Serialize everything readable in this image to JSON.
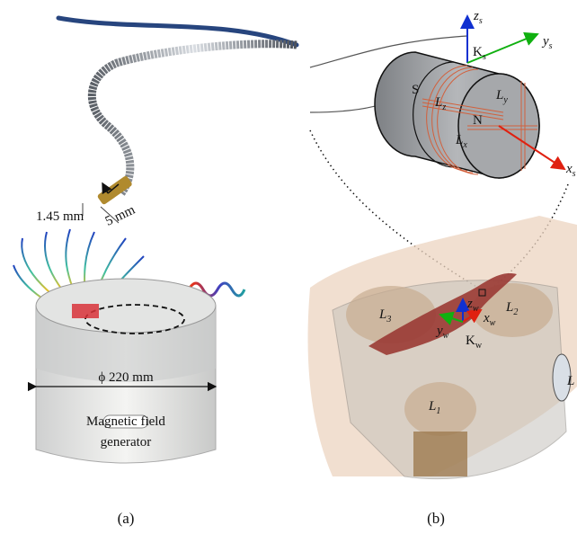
{
  "panel_a": {
    "catheter_diameter": "1.45 mm",
    "tip_length": "5 mm",
    "generator_diameter": "ϕ 220 mm",
    "generator_label": [
      "Magnetic field",
      "generator"
    ],
    "caption": "(a)"
  },
  "panel_b": {
    "magnet_poles": [
      "S",
      "N"
    ],
    "coils": [
      {
        "base": "L",
        "sub": "z"
      },
      {
        "base": "L",
        "sub": "y"
      },
      {
        "base": "L",
        "sub": "x"
      }
    ],
    "sensor_axes": [
      {
        "base": "z",
        "sub": "s"
      },
      {
        "base": "y",
        "sub": "s"
      },
      {
        "base": "x",
        "sub": "s"
      }
    ],
    "sensor_frame": {
      "base": "K",
      "sub": "s"
    },
    "generator_coils": [
      {
        "base": "L",
        "sub": "3"
      },
      {
        "base": "L",
        "sub": "2"
      },
      {
        "base": "L",
        "sub": "1"
      },
      {
        "base": "L"
      }
    ],
    "world_axes": [
      {
        "base": "z",
        "sub": "w"
      },
      {
        "base": "x",
        "sub": "w"
      },
      {
        "base": "y",
        "sub": "w"
      }
    ],
    "world_frame": {
      "base": "K",
      "sub": "w"
    },
    "caption": "(b)"
  }
}
